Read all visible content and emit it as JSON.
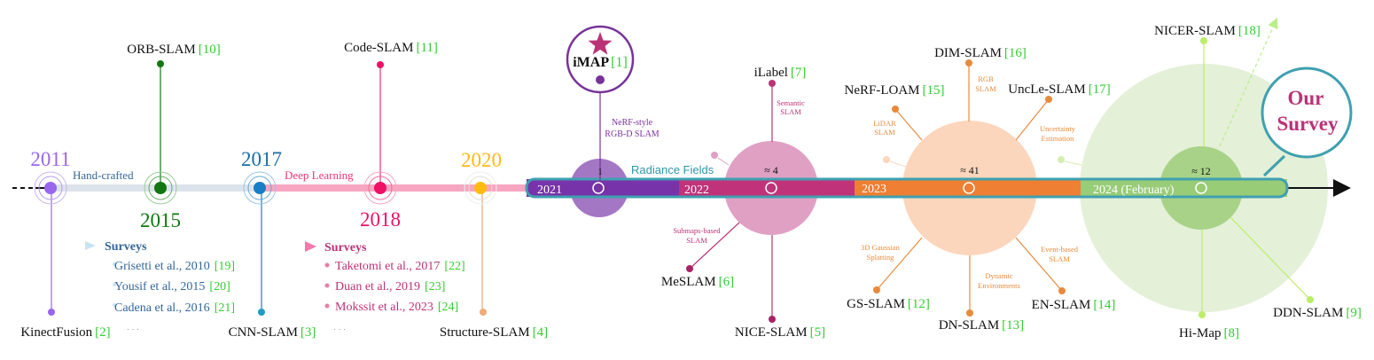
{
  "colors": {
    "axis": "#111111",
    "ref_green": "#33cc33",
    "year2011": "#9966ee",
    "year2015": "#117711",
    "year2017": "#1a7ec4",
    "year2018": "#ee1166",
    "year2020": "#ffbb11",
    "bar2021": "#7733aa",
    "bar2022": "#c0337a",
    "bar2023": "#ee7f33",
    "bar2024": "#99cc77",
    "bar_outline": "#3fa0b0",
    "imap": "#773399",
    "sem": "#bb3377",
    "orange": "#e88a3c",
    "lime": "#bbee66",
    "survey_blue": "#336699",
    "survey_pink": "#bb3377"
  },
  "eras": {
    "handcrafted": "Hand-crafted",
    "deep_learning": "Deep Learning",
    "radiance_fields": "Radiance Fields"
  },
  "years": {
    "y2011": "2011",
    "y2015": "2015",
    "y2017": "2017",
    "y2018": "2018",
    "y2020": "2020"
  },
  "bar_segments": {
    "s2021": "2021",
    "s2022": "2022",
    "s2023": "2023",
    "s2024": "2024 (February)"
  },
  "counts": {
    "c2021": "1",
    "c2022": "≈ 4",
    "c2023": "≈ 41",
    "c2024": "≈ 12"
  },
  "methods": {
    "orbslam": {
      "name": "ORB-SLAM",
      "ref": "[10]"
    },
    "codeslam": {
      "name": "Code-SLAM",
      "ref": "[11]"
    },
    "kinectfusion": {
      "name": "KinectFusion",
      "ref": "[2]"
    },
    "cnnslam": {
      "name": "CNN-SLAM",
      "ref": "[3]"
    },
    "structureslam": {
      "name": "Structure-SLAM",
      "ref": "[4]"
    },
    "imap": {
      "name": "iMAP",
      "ref": "[1]"
    },
    "ilabel": {
      "name": "iLabel",
      "ref": "[7]"
    },
    "meslam": {
      "name": "MeSLAM",
      "ref": "[6]"
    },
    "niceslam": {
      "name": "NICE-SLAM",
      "ref": "[5]"
    },
    "dimslam": {
      "name": "DIM-SLAM",
      "ref": "[16]"
    },
    "nerfloam": {
      "name": "NeRF-LOAM",
      "ref": "[15]"
    },
    "uncleslam": {
      "name": "UncLe-SLAM",
      "ref": "[17]"
    },
    "gsslam": {
      "name": "GS-SLAM",
      "ref": "[12]"
    },
    "dnslam": {
      "name": "DN-SLAM",
      "ref": "[13]"
    },
    "enslam": {
      "name": "EN-SLAM",
      "ref": "[14]"
    },
    "nicerslam": {
      "name": "NICER-SLAM",
      "ref": "[18]"
    },
    "himap": {
      "name": "Hi-Map",
      "ref": "[8]"
    },
    "ddnslam": {
      "name": "DDN-SLAM",
      "ref": "[9]"
    }
  },
  "annotations": {
    "nerf_style_1": "NeRF-style",
    "nerf_style_2": "RGB-D SLAM",
    "semantic_1": "Semantic",
    "semantic_2": "SLAM",
    "submaps_1": "Submaps-based",
    "submaps_2": "SLAM",
    "lidar_1": "LiDAR",
    "lidar_2": "SLAM",
    "rgb_1": "RGB",
    "rgb_2": "SLAM",
    "uncert_1": "Uncertainty",
    "uncert_2": "Estimation",
    "gauss_1": "3D Gaussian",
    "gauss_2": "Splatting",
    "dynamic_1": "Dynamic",
    "dynamic_2": "Environments",
    "event_1": "Event-based",
    "event_2": "SLAM"
  },
  "surveys_left": {
    "title": "Surveys",
    "items": [
      {
        "name": "Grisetti et al., 2010",
        "ref": "[19]"
      },
      {
        "name": "Yousif et al., 2015",
        "ref": "[20]"
      },
      {
        "name": "Cadena et al., 2016",
        "ref": "[21]"
      }
    ],
    "more": "· · ·"
  },
  "surveys_right": {
    "title": "Surveys",
    "items": [
      {
        "name": "Taketomi et al., 2017",
        "ref": "[22]"
      },
      {
        "name": "Duan et al., 2019",
        "ref": "[23]"
      },
      {
        "name": "Mokssit et al., 2023",
        "ref": "[24]"
      }
    ],
    "more": "· · ·"
  },
  "kinect_more": "· · ·",
  "our_survey": {
    "line1": "Our",
    "line2": "Survey"
  }
}
